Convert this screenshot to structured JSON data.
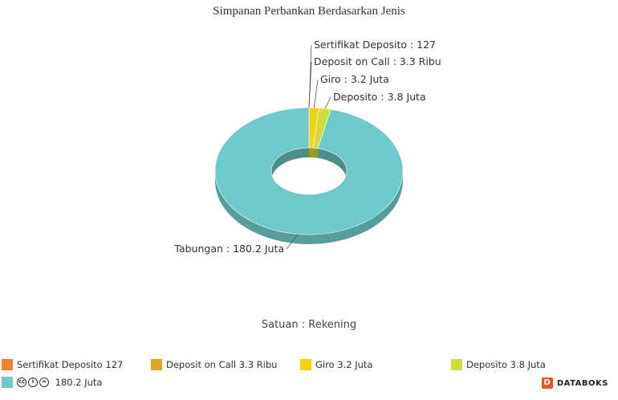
{
  "chart_data": {
    "type": "pie",
    "title": "Simpanan Perbankan Berdasarkan Jenis",
    "unit_label": "Satuan : Rekening",
    "slices": [
      {
        "name": "Sertifikat Deposito",
        "value": 127,
        "value_label": "127",
        "color": "#f28032"
      },
      {
        "name": "Deposit on Call",
        "value": 3300,
        "value_label": "3.3 Ribu",
        "color": "#e5a526"
      },
      {
        "name": "Giro",
        "value": 3200000,
        "value_label": "3.2 Juta",
        "color": "#f5d312"
      },
      {
        "name": "Deposito",
        "value": 3800000,
        "value_label": "3.8 Juta",
        "color": "#cfdc3b"
      },
      {
        "name": "Tabungan",
        "value": 180200000,
        "value_label": "180.2 Juta",
        "color": "#6ecac8"
      }
    ]
  },
  "legend": [
    {
      "name": "Sertifikat Deposito",
      "value_label": "127",
      "color": "#f28032"
    },
    {
      "name": "Deposit on Call",
      "value_label": "3.3 Ribu",
      "color": "#e5a526"
    },
    {
      "name": "Giro",
      "value_label": "3.2 Juta",
      "color": "#f5d312"
    },
    {
      "name": "Deposito",
      "value_label": "3.8 Juta",
      "color": "#cfdc3b"
    },
    {
      "name": "",
      "value_label": "180.2 Juta",
      "color": "#6ecac8"
    }
  ],
  "brand": "DATABOKS",
  "brand_logo_letter": "D"
}
